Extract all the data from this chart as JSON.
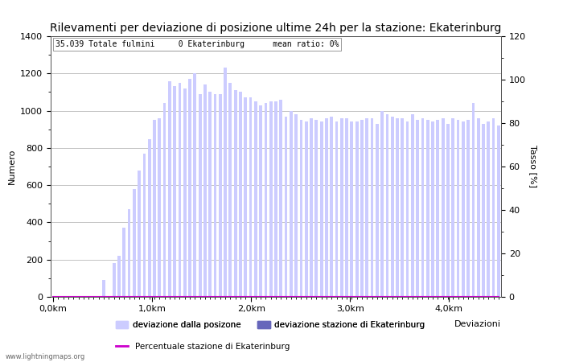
{
  "title": "Rilevamenti per deviazione di posizione ultime 24h per la stazione: Ekaterinburg",
  "xlabel": "Deviazioni",
  "ylabel_left": "Numero",
  "ylabel_right": "Tasso [%]",
  "info_text": "35.039 Totale fulmini     0 Ekaterinburg      mean ratio: 0%",
  "watermark": "www.lightningmaps.org",
  "bar_color": "#ccccff",
  "bar_color_station": "#6666bb",
  "line_color": "#cc00cc",
  "ylim_left": [
    0,
    1400
  ],
  "ylim_right": [
    0,
    120
  ],
  "xtick_labels": [
    "0,0km",
    "1,0km",
    "2,0km",
    "3,0km",
    "4,0km"
  ],
  "bar_values": [
    0,
    2,
    0,
    2,
    0,
    2,
    0,
    2,
    3,
    2,
    90,
    3,
    180,
    220,
    370,
    470,
    580,
    680,
    770,
    845,
    950,
    960,
    1040,
    1160,
    1130,
    1150,
    1120,
    1170,
    1200,
    1090,
    1140,
    1100,
    1090,
    1090,
    1230,
    1150,
    1110,
    1100,
    1070,
    1070,
    1050,
    1030,
    1040,
    1050,
    1050,
    1060,
    970,
    1000,
    980,
    950,
    940,
    960,
    950,
    940,
    960,
    970,
    940,
    960,
    960,
    940,
    940,
    950,
    960,
    960,
    930,
    1000,
    980,
    970,
    960,
    960,
    940,
    980,
    950,
    960,
    950,
    940,
    950,
    960,
    930,
    960,
    950,
    940,
    950,
    1040,
    960,
    930,
    940,
    960,
    920
  ],
  "station_bar_values": [
    0,
    0,
    0,
    0,
    0,
    0,
    0,
    0,
    0,
    0,
    0,
    0,
    0,
    0,
    0,
    0,
    0,
    0,
    0,
    0,
    0,
    0,
    0,
    0,
    0,
    0,
    0,
    0,
    0,
    0,
    0,
    0,
    0,
    0,
    0,
    0,
    0,
    0,
    0,
    0,
    0,
    0,
    0,
    0,
    0,
    0,
    0,
    0,
    0,
    0,
    0,
    0,
    0,
    0,
    0,
    0,
    0,
    0,
    0,
    0,
    0,
    0,
    0,
    0,
    0,
    0,
    0,
    0,
    0,
    0,
    0,
    0,
    0,
    0,
    0,
    0,
    0,
    0,
    0,
    0,
    0,
    0,
    0,
    0,
    0,
    0,
    0,
    0,
    0
  ],
  "legend_labels": [
    "deviazione dalla posizone",
    "deviazione stazione di Ekaterinburg",
    "Percentuale stazione di Ekaterinburg"
  ],
  "title_fontsize": 10,
  "label_fontsize": 8,
  "tick_fontsize": 8,
  "figsize": [
    7.0,
    4.5
  ],
  "dpi": 100
}
